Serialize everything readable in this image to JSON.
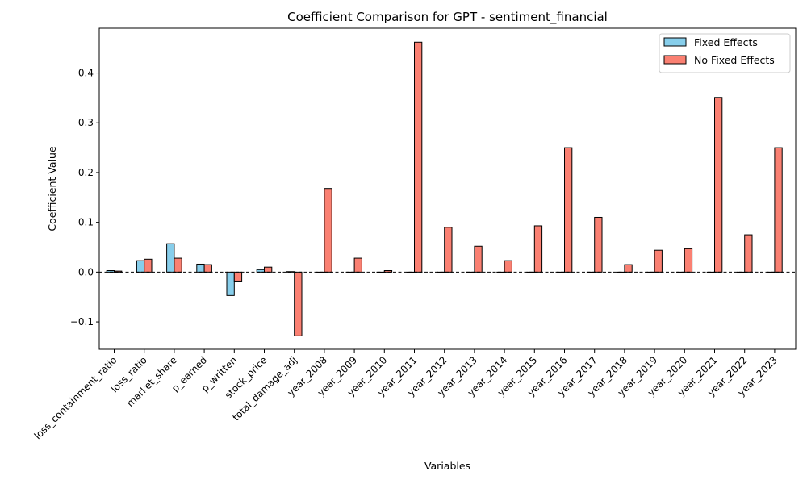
{
  "chart_data": {
    "type": "bar",
    "title": "Coefficient Comparison for GPT - sentiment_financial",
    "xlabel": "Variables",
    "ylabel": "Coefficient Value",
    "ylim": [
      -0.155,
      0.49
    ],
    "yticks": [
      -0.1,
      0.0,
      0.1,
      0.2,
      0.3,
      0.4
    ],
    "ytick_labels": [
      "−0.1",
      "0.0",
      "0.1",
      "0.2",
      "0.3",
      "0.4"
    ],
    "legend_position": "top-right",
    "reference_line": 0,
    "categories": [
      "loss_containment_ratio",
      "loss_ratio",
      "market_share",
      "p_earned",
      "p_written",
      "stock_price",
      "total_damage_adj",
      "year_2008",
      "year_2009",
      "year_2010",
      "year_2011",
      "year_2012",
      "year_2013",
      "year_2014",
      "year_2015",
      "year_2016",
      "year_2017",
      "year_2018",
      "year_2019",
      "year_2020",
      "year_2021",
      "year_2022",
      "year_2023"
    ],
    "series": [
      {
        "name": "Fixed Effects",
        "color": "#87ceeb",
        "values": [
          0.003,
          0.023,
          0.057,
          0.016,
          -0.047,
          0.005,
          0.001,
          0.0,
          0.0,
          0.0,
          0.0,
          0.0,
          0.0,
          0.0,
          0.0,
          0.0,
          0.0,
          0.0,
          0.0,
          0.0,
          0.0,
          0.0,
          0.0
        ]
      },
      {
        "name": "No Fixed Effects",
        "color": "#fa8072",
        "values": [
          0.002,
          0.026,
          0.028,
          0.015,
          -0.018,
          0.01,
          -0.128,
          0.168,
          0.028,
          0.003,
          0.462,
          0.09,
          0.052,
          0.023,
          0.093,
          0.25,
          0.11,
          0.015,
          0.044,
          0.047,
          0.351,
          0.075,
          0.25
        ]
      }
    ]
  }
}
